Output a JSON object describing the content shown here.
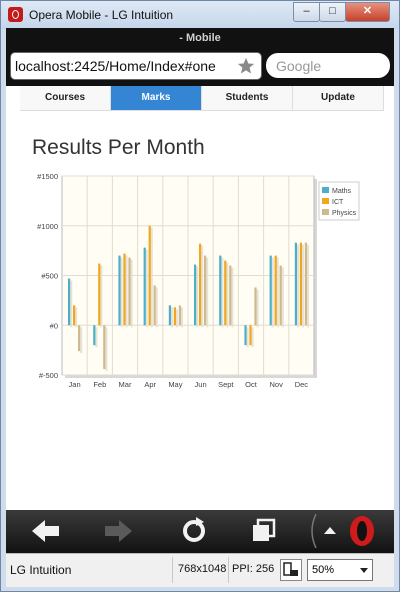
{
  "window": {
    "title": "Opera Mobile - LG Intuition"
  },
  "browser": {
    "mode_label": "- Mobile",
    "url": "localhost:2425/Home/Index#one",
    "search_placeholder": "Google"
  },
  "nav": {
    "tabs": [
      {
        "label": "Courses"
      },
      {
        "label": "Marks"
      },
      {
        "label": "Students"
      },
      {
        "label": "Update"
      }
    ]
  },
  "chart_data": {
    "type": "bar",
    "title": "Results Per Month",
    "categories": [
      "Jan",
      "Feb",
      "Mar",
      "Apr",
      "May",
      "Jun",
      "Sept",
      "Oct",
      "Nov",
      "Dec"
    ],
    "series": [
      {
        "name": "Maths",
        "values": [
          470,
          -200,
          700,
          780,
          200,
          610,
          700,
          -200,
          700,
          830
        ],
        "color": "#4dafc7"
      },
      {
        "name": "ICT",
        "values": [
          200,
          620,
          720,
          1000,
          180,
          820,
          650,
          -200,
          700,
          830
        ],
        "color": "#f0a61e"
      },
      {
        "name": "Physics",
        "values": [
          -260,
          -440,
          680,
          400,
          200,
          700,
          600,
          380,
          600,
          830
        ],
        "color": "#cdbb8e"
      }
    ],
    "yticks": [
      "#-500",
      "#0",
      "#500",
      "#1000",
      "#1500"
    ],
    "ylim": [
      -500,
      1500
    ],
    "legend": "right",
    "grid": true
  },
  "toolbar": {
    "icons": [
      "back-arrow-icon",
      "forward-arrow-icon",
      "reload-icon",
      "tabs-icon",
      "opera-menu-icon"
    ]
  },
  "status": {
    "device": "LG Intuition",
    "resolution": "768x1048",
    "ppi": "PPI: 256",
    "zoom": "50%"
  }
}
